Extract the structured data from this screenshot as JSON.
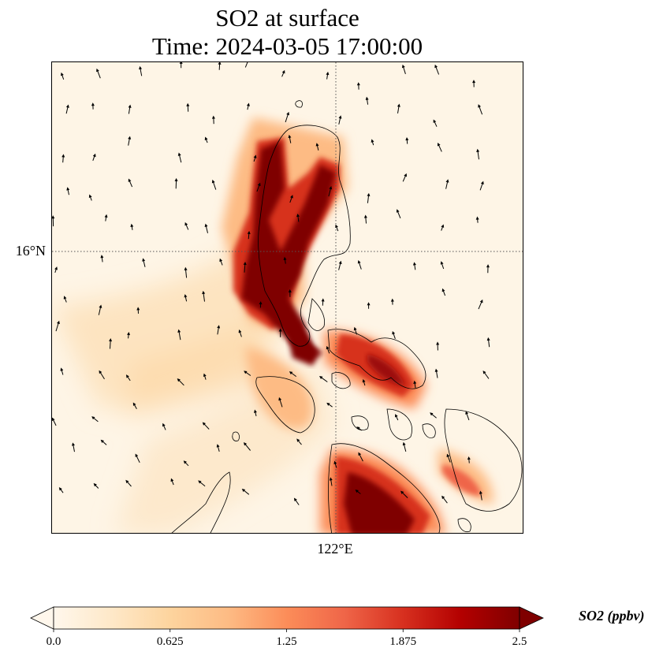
{
  "title": {
    "line1": "SO2 at surface",
    "line2": "Time: 2024-03-05 17:00:00"
  },
  "axes": {
    "lat_label": "16°N",
    "lon_label": "122°E"
  },
  "colorbar": {
    "label": "SO2 (ppbv)",
    "min": 0.0,
    "max": 2.5,
    "extend": "both",
    "colormap": "OrRd",
    "ticks": [
      "0.0",
      "0.625",
      "1.25",
      "1.875",
      "2.5"
    ],
    "colors": [
      "#fff7ec",
      "#fee8c8",
      "#fdd49e",
      "#fdbb84",
      "#fc8d59",
      "#ef6548",
      "#d7301f",
      "#b30000",
      "#7f0000"
    ]
  }
}
